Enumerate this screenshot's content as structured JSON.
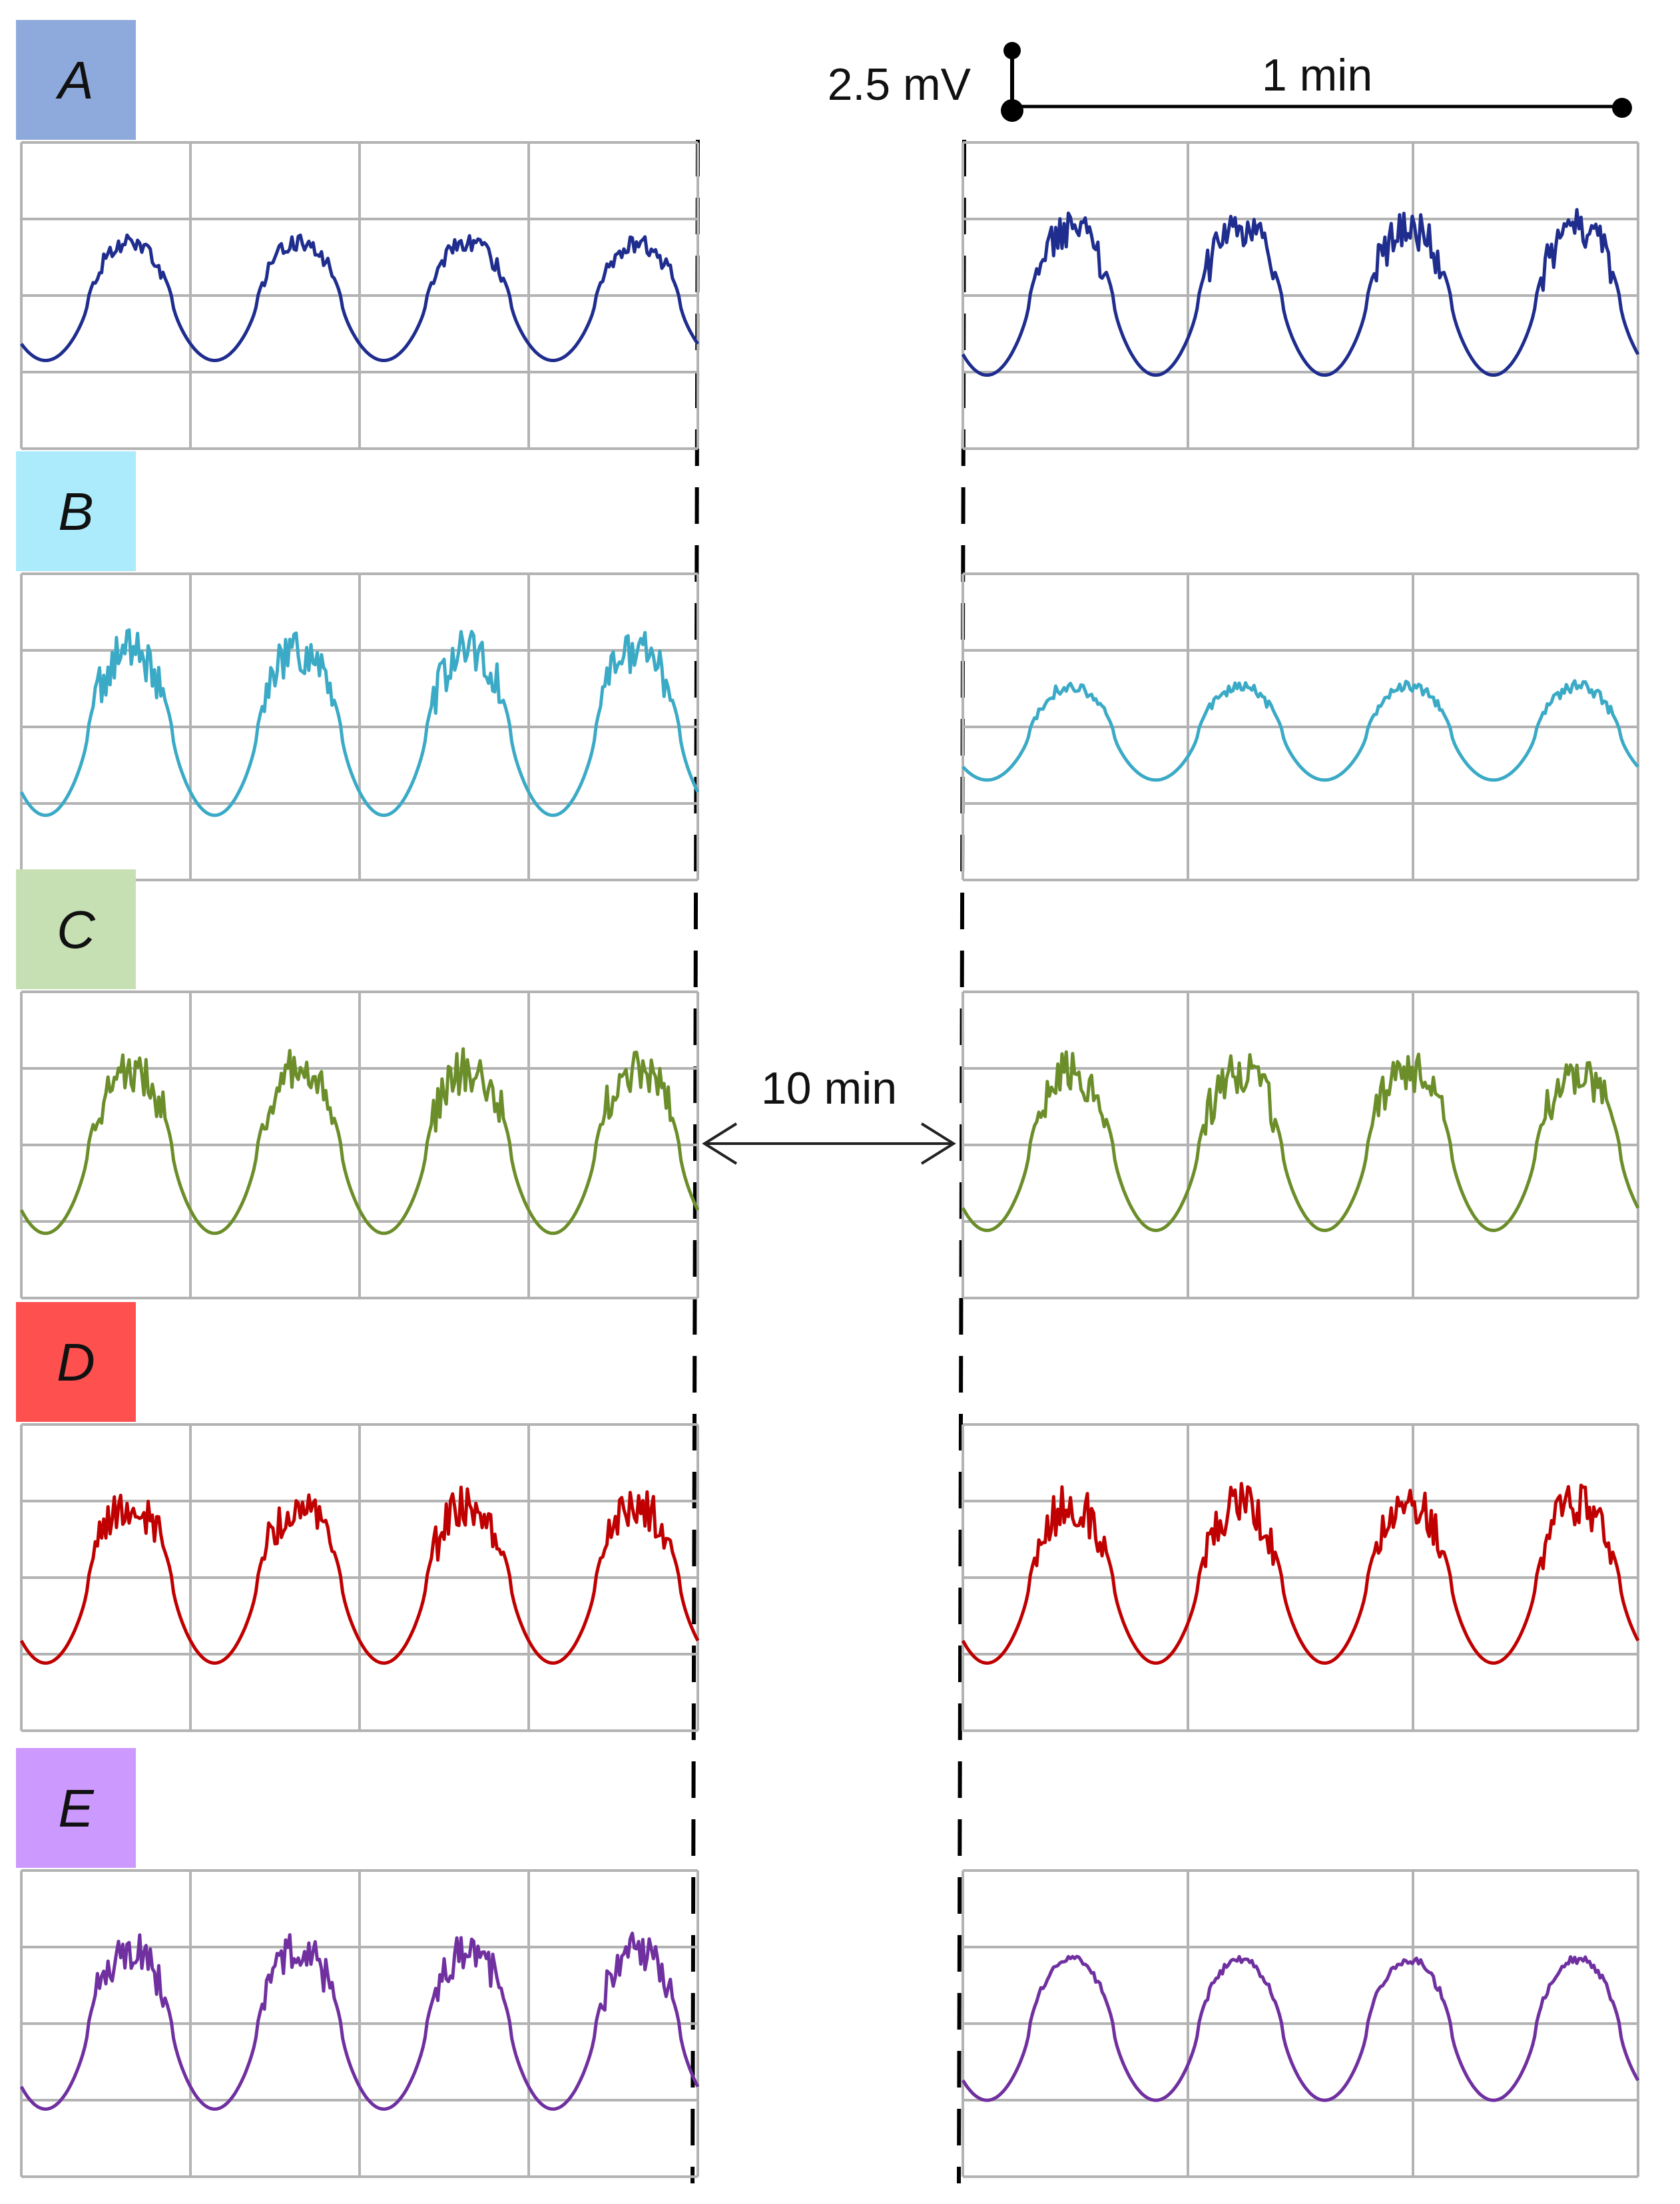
{
  "scale_bar": {
    "voltage_label": "2.5 mV",
    "time_label": "1 min",
    "voltage_mv": 2.5,
    "time_min": 1
  },
  "gap": {
    "label": "10 min",
    "minutes": 10
  },
  "chart_data": {
    "type": "line",
    "title": "",
    "xlabel": "",
    "ylabel": "",
    "grid": true,
    "x_unit": "min",
    "y_unit": "mV",
    "panels": [
      {
        "label": "A",
        "label_color": "#8EA9DB",
        "trace_color": "#1F2D8E",
        "series": [
          {
            "segment": "before",
            "period_min": 1.0,
            "amplitude_mv": 2.0,
            "peaks": 4,
            "noise": 0.25
          },
          {
            "segment": "after",
            "period_min": 1.0,
            "amplitude_mv": 2.5,
            "peaks": 4,
            "noise": 0.45
          }
        ]
      },
      {
        "label": "B",
        "label_color": "#ABEBFC",
        "trace_color": "#3BAAC6",
        "series": [
          {
            "segment": "before",
            "period_min": 1.0,
            "amplitude_mv": 2.8,
            "peaks": 4,
            "noise": 0.45
          },
          {
            "segment": "after",
            "period_min": 1.0,
            "amplitude_mv": 1.6,
            "peaks": 4,
            "noise": 0.2
          }
        ]
      },
      {
        "label": "C",
        "label_color": "#C6E0B4",
        "trace_color": "#6B8E2A",
        "series": [
          {
            "segment": "before",
            "period_min": 1.0,
            "amplitude_mv": 2.8,
            "peaks": 4,
            "noise": 0.45
          },
          {
            "segment": "after",
            "period_min": 1.0,
            "amplitude_mv": 2.7,
            "peaks": 4,
            "noise": 0.45
          }
        ]
      },
      {
        "label": "D",
        "label_color": "#FF5050",
        "trace_color": "#C00000",
        "series": [
          {
            "segment": "before",
            "period_min": 1.0,
            "amplitude_mv": 2.7,
            "peaks": 4,
            "noise": 0.45
          },
          {
            "segment": "after",
            "period_min": 1.0,
            "amplitude_mv": 2.7,
            "peaks": 4,
            "noise": 0.45
          }
        ]
      },
      {
        "label": "E",
        "label_color": "#CC99FF",
        "trace_color": "#7030A0",
        "series": [
          {
            "segment": "before",
            "period_min": 1.0,
            "amplitude_mv": 2.7,
            "peaks": 4,
            "noise": 0.4
          },
          {
            "segment": "after",
            "period_min": 1.0,
            "amplitude_mv": 2.4,
            "peaks": 4,
            "noise": 0.1
          }
        ]
      }
    ]
  }
}
